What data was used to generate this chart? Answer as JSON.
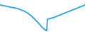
{
  "x": [
    0,
    5,
    10,
    15,
    20,
    25,
    30,
    35,
    40,
    45,
    50,
    55,
    60,
    65,
    66,
    67,
    75,
    80,
    90,
    100,
    110,
    120
  ],
  "y": [
    38,
    37,
    36,
    35,
    34,
    33,
    31,
    29,
    26,
    22,
    17,
    12,
    6,
    2,
    2,
    18,
    20,
    22,
    26,
    30,
    34,
    38
  ],
  "line_color": "#3ca8d8",
  "line_width": 1.4,
  "background_color": "#ffffff",
  "ylim_min": 0,
  "ylim_max": 45,
  "xlim_min": 0,
  "xlim_max": 120
}
